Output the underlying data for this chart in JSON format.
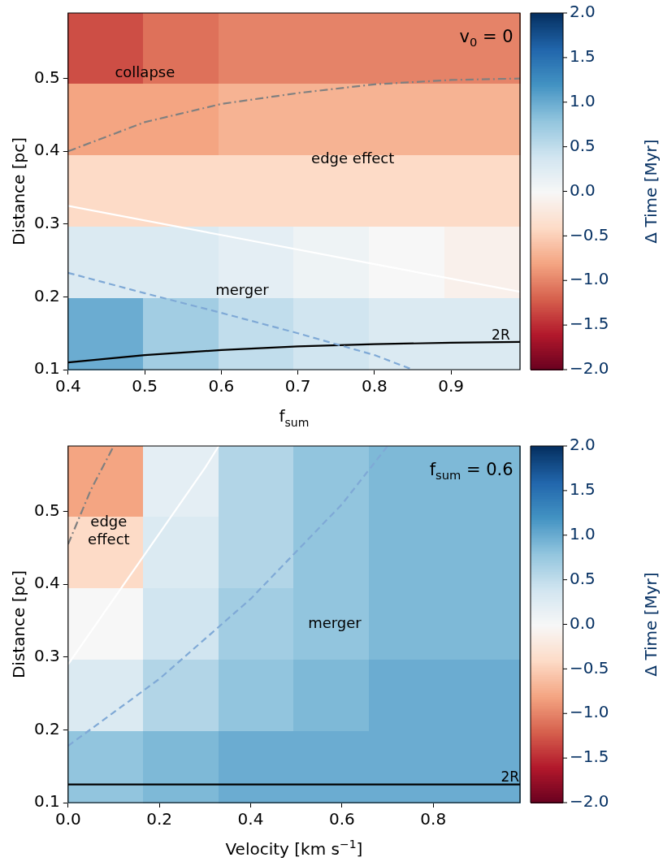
{
  "chart_data": [
    {
      "type": "heatmap",
      "xlabel": "f$_{sum}$",
      "ylabel": "Distance [pc]",
      "clabel": "Δ Time [Myr]",
      "xlim": [
        0.4,
        0.99
      ],
      "ylim": [
        0.1,
        0.59
      ],
      "xticks": [
        0.4,
        0.5,
        0.6,
        0.7,
        0.8,
        0.9
      ],
      "yticks": [
        0.1,
        0.2,
        0.3,
        0.4,
        0.5
      ],
      "clim": [
        -2,
        2
      ],
      "cticks": [
        {
          "value": -2,
          "label": "−2.0"
        },
        {
          "value": -1.5,
          "label": "−1.5"
        },
        {
          "value": -1,
          "label": "−1.0"
        },
        {
          "value": -0.5,
          "label": "−0.5"
        },
        {
          "value": 0,
          "label": "0.0"
        },
        {
          "value": 0.5,
          "label": "0.5"
        },
        {
          "value": 1,
          "label": "1.0"
        },
        {
          "value": 1.5,
          "label": "1.5"
        },
        {
          "value": 2,
          "label": "2.0"
        }
      ],
      "cells": [
        [
          -1.3,
          -1.1,
          -1.0,
          -1.0,
          -1.0,
          -1.0
        ],
        [
          -0.8,
          -0.8,
          -0.7,
          -0.7,
          -0.7,
          -0.7
        ],
        [
          -0.4,
          -0.4,
          -0.4,
          -0.4,
          -0.4,
          -0.4
        ],
        [
          0.3,
          0.3,
          0.2,
          0.1,
          0.0,
          -0.1
        ],
        [
          1.0,
          0.7,
          0.5,
          0.4,
          0.3,
          0.3
        ]
      ],
      "series": [
        {
          "type": "line",
          "color": "#808080",
          "line_style": "dashdot",
          "x": [
            0.4,
            0.5,
            0.6,
            0.7,
            0.8,
            0.9,
            0.99
          ],
          "values": [
            0.4,
            0.44,
            0.465,
            0.48,
            0.492,
            0.498,
            0.5
          ]
        },
        {
          "type": "line",
          "color": "#ffffff",
          "line_style": "solid",
          "x": [
            0.4,
            0.6,
            0.8,
            0.99
          ],
          "values": [
            0.325,
            0.285,
            0.245,
            0.207
          ]
        },
        {
          "type": "line",
          "color": "#7fa9d6",
          "line_style": "dashed",
          "x": [
            0.4,
            0.5,
            0.6,
            0.7,
            0.8,
            0.85
          ],
          "values": [
            0.233,
            0.205,
            0.178,
            0.15,
            0.12,
            0.1
          ]
        },
        {
          "type": "line",
          "color": "#000000",
          "line_style": "solid",
          "x": [
            0.4,
            0.5,
            0.6,
            0.7,
            0.8,
            0.9,
            0.99
          ],
          "values": [
            0.11,
            0.12,
            0.127,
            0.132,
            0.135,
            0.137,
            0.138
          ]
        }
      ],
      "annotations": [
        "v$_{0}$ = 0",
        "collapse",
        "edge effect",
        "merger",
        {
          "text": "2R",
          "x": 0.96,
          "y": 0.137
        }
      ],
      "legend": false,
      "marker": "none"
    },
    {
      "type": "heatmap",
      "xlabel": "Velocity [km s$^{−1}$]",
      "ylabel": "Distance [pc]",
      "clabel": "Δ Time [Myr]",
      "xlim": [
        0,
        0.99
      ],
      "ylim": [
        0.1,
        0.59
      ],
      "xticks": [
        {
          "value": 0,
          "label": "0.0"
        },
        0.2,
        0.4,
        0.6,
        0.8
      ],
      "yticks": [
        0.1,
        0.2,
        0.3,
        0.4,
        0.5
      ],
      "clim": [
        -2,
        2
      ],
      "cticks": [
        {
          "value": -2,
          "label": "−2.0"
        },
        {
          "value": -1.5,
          "label": "−1.5"
        },
        {
          "value": -1,
          "label": "−1.0"
        },
        {
          "value": -0.5,
          "label": "−0.5"
        },
        {
          "value": 0,
          "label": "0.0"
        },
        {
          "value": 0.5,
          "label": "0.5"
        },
        {
          "value": 1,
          "label": "1.0"
        },
        {
          "value": 1.5,
          "label": "1.5"
        },
        {
          "value": 2,
          "label": "2.0"
        }
      ],
      "cells": [
        [
          -0.8,
          0.2,
          0.6,
          0.8,
          0.9,
          0.9
        ],
        [
          -0.4,
          0.3,
          0.6,
          0.8,
          0.9,
          0.9
        ],
        [
          0.0,
          0.4,
          0.7,
          0.8,
          0.9,
          0.9
        ],
        [
          0.3,
          0.6,
          0.8,
          0.9,
          1.0,
          1.0
        ],
        [
          0.8,
          0.9,
          1.0,
          1.0,
          1.0,
          1.0
        ]
      ],
      "series": [
        {
          "type": "line",
          "color": "#808080",
          "line_style": "dashdot",
          "x": [
            0.0,
            0.05,
            0.1
          ],
          "values": [
            0.455,
            0.53,
            0.59
          ]
        },
        {
          "type": "line",
          "color": "#ffffff",
          "line_style": "solid",
          "x": [
            0.0,
            0.1,
            0.2,
            0.3,
            0.33
          ],
          "values": [
            0.29,
            0.38,
            0.47,
            0.56,
            0.59
          ]
        },
        {
          "type": "line",
          "color": "#7fa9d6",
          "line_style": "dashed",
          "x": [
            0.0,
            0.2,
            0.4,
            0.6,
            0.7
          ],
          "values": [
            0.178,
            0.27,
            0.38,
            0.51,
            0.59
          ]
        },
        {
          "type": "line",
          "color": "#000000",
          "line_style": "solid",
          "x": [
            0.0,
            0.99
          ],
          "values": [
            0.125,
            0.125
          ]
        }
      ],
      "annotations": [
        "f$_{sum}$ = 0.6",
        "edge\neffect",
        "merger",
        {
          "text": "2R",
          "x": 0.96,
          "y": 0.125
        }
      ],
      "legend": false,
      "marker": "none"
    }
  ]
}
